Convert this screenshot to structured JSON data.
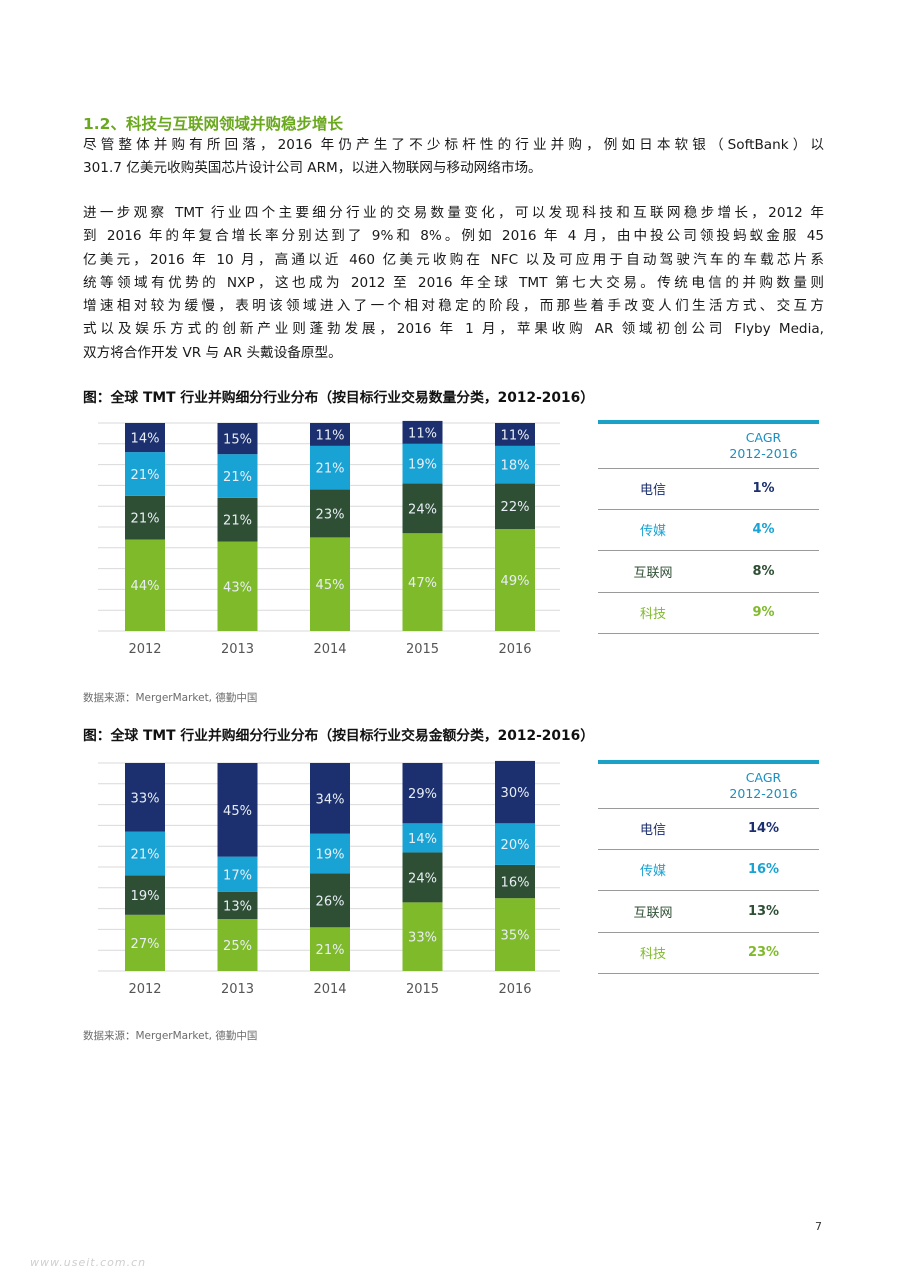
{
  "section": {
    "title": "1.2、科技与互联网领域并购稳步增长"
  },
  "para1": {
    "lines": [
      "尽管整体并购有所回落，2016 年仍产生了不少标杆性的行业并购，例如日本软银（SoftBank）以",
      "301.7 亿美元收购英国芯片设计公司 ARM，以进入物联网与移动网络市场。"
    ]
  },
  "para2": {
    "lines": [
      "进一步观察 TMT 行业四个主要细分行业的交易数量变化，可以发现科技和互联网稳步增长，2012 年",
      "到 2016 年的年复合增长率分别达到了 9%和 8%。例如 2016 年 4 月，由中投公司领投蚂蚁金服 45",
      "亿美元，2016 年 10 月，高通以近 460 亿美元收购在 NFC 以及可应用于自动驾驶汽车的车载芯片系",
      "统等领域有优势的 NXP，这也成为 2012 至 2016 年全球 TMT 第七大交易。传统电信的并购数量则",
      "增速相对较为缓慢，表明该领域进入了一个相对稳定的阶段，而那些着手改变人们生活方式、交互方",
      "式以及娱乐方式的创新产业则蓬勃发展，2016 年 1 月，苹果收购 AR 领域初创公司 Flyby Media,",
      "双方将合作开发 VR 与 AR 头戴设备原型。"
    ]
  },
  "figure1": {
    "title": "图：全球 TMT 行业并购细分行业分布（按目标行业交易数量分类，2012-2016）",
    "source": "数据来源：MergerMarket, 德勤中国",
    "cagr_header": [
      "CAGR",
      "2012-2016"
    ],
    "cagr_rows": [
      {
        "label": "电信",
        "value": "1%",
        "color": "#1c2f6e"
      },
      {
        "label": "传媒",
        "value": "4%",
        "color": "#19a3d4"
      },
      {
        "label": "互联网",
        "value": "8%",
        "color": "#2f4f35"
      },
      {
        "label": "科技",
        "value": "9%",
        "color": "#7fba2a"
      }
    ]
  },
  "figure2": {
    "title": "图：全球 TMT 行业并购细分行业分布（按目标行业交易金额分类，2012-2016）",
    "source": "数据来源：MergerMarket, 德勤中国",
    "cagr_header": [
      "CAGR",
      "2012-2016"
    ],
    "cagr_rows": [
      {
        "label": "电信",
        "value": "14%",
        "color": "#1c2f6e"
      },
      {
        "label": "传媒",
        "value": "16%",
        "color": "#19a3d4"
      },
      {
        "label": "互联网",
        "value": "13%",
        "color": "#2f4f35"
      },
      {
        "label": "科技",
        "value": "23%",
        "color": "#7fba2a"
      }
    ]
  },
  "chart_data": [
    {
      "type": "bar",
      "stacked": true,
      "title": "图：全球 TMT 行业并购细分行业分布（按目标行业交易数量分类，2012-2016）",
      "categories": [
        "2012",
        "2013",
        "2014",
        "2015",
        "2016"
      ],
      "series": [
        {
          "name": "科技",
          "color": "#7fba2a",
          "values": [
            44,
            43,
            45,
            47,
            49
          ]
        },
        {
          "name": "互联网",
          "color": "#2f4f35",
          "values": [
            21,
            21,
            23,
            24,
            22
          ]
        },
        {
          "name": "传媒",
          "color": "#19a3d4",
          "values": [
            21,
            21,
            21,
            19,
            18
          ]
        },
        {
          "name": "电信",
          "color": "#1c2f6e",
          "values": [
            14,
            15,
            11,
            11,
            11
          ]
        }
      ],
      "labels": [
        [
          "44%",
          "43%",
          "45%",
          "47%",
          "49%"
        ],
        [
          "21%",
          "21%",
          "23%",
          "24%",
          "22%"
        ],
        [
          "21%",
          "21%",
          "21%",
          "19%",
          "18%"
        ],
        [
          "14%",
          "15%",
          "11%",
          "11%",
          "11%"
        ]
      ],
      "ylim": [
        0,
        100
      ],
      "grid": true
    },
    {
      "type": "bar",
      "stacked": true,
      "title": "图：全球 TMT 行业并购细分行业分布（按目标行业交易金额分类，2012-2016）",
      "categories": [
        "2012",
        "2013",
        "2014",
        "2015",
        "2016"
      ],
      "series": [
        {
          "name": "科技",
          "color": "#7fba2a",
          "values": [
            27,
            25,
            21,
            33,
            35
          ]
        },
        {
          "name": "互联网",
          "color": "#2f4f35",
          "values": [
            19,
            13,
            26,
            24,
            16
          ]
        },
        {
          "name": "传媒",
          "color": "#19a3d4",
          "values": [
            21,
            17,
            19,
            14,
            20
          ]
        },
        {
          "name": "电信",
          "color": "#1c2f6e",
          "values": [
            33,
            45,
            34,
            29,
            30
          ]
        }
      ],
      "labels": [
        [
          "27%",
          "25%",
          "21%",
          "33%",
          "35%"
        ],
        [
          "19%",
          "13%",
          "26%",
          "24%",
          "16%"
        ],
        [
          "21%",
          "17%",
          "19%",
          "14%",
          "20%"
        ],
        [
          "33%",
          "45%",
          "34%",
          "29%",
          "30%"
        ]
      ],
      "ylim": [
        0,
        100
      ],
      "grid": true
    }
  ],
  "footer": {
    "page_number": "7",
    "watermark": "www.useit.com.cn"
  }
}
